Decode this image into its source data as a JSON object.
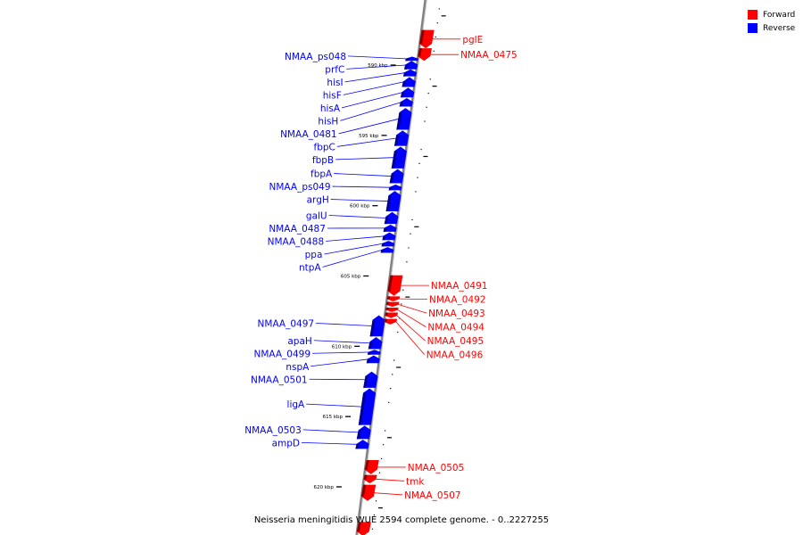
{
  "caption": "Neisseria meningitidis WUE 2594 complete genome. - 0..2227255",
  "legend": [
    {
      "label": "Forward",
      "color": "#ff0000"
    },
    {
      "label": "Reverse",
      "color": "#0000ff"
    }
  ],
  "colors": {
    "forward": "#ff0000",
    "reverse": "#0000ff",
    "backbone": "#808080"
  },
  "scale_marks": [
    {
      "label": "590 kbp",
      "kbp": 590
    },
    {
      "label": "595 kbp",
      "kbp": 595
    },
    {
      "label": "600 kbp",
      "kbp": 600
    },
    {
      "label": "605 kbp",
      "kbp": 605
    },
    {
      "label": "610 kbp",
      "kbp": 610
    },
    {
      "label": "615 kbp",
      "kbp": 615
    },
    {
      "label": "620 kbp",
      "kbp": 620
    }
  ],
  "genes": [
    {
      "name": "pglE",
      "strand": "forward",
      "start_kbp": 587.5,
      "end_kbp": 588.8
    },
    {
      "name": "NMAA_0475",
      "strand": "forward",
      "start_kbp": 588.8,
      "end_kbp": 589.7
    },
    {
      "name": "NMAA_ps048",
      "strand": "reverse",
      "start_kbp": 589.4,
      "end_kbp": 589.7
    },
    {
      "name": "prfC",
      "strand": "reverse",
      "start_kbp": 589.7,
      "end_kbp": 590.3
    },
    {
      "name": "hisI",
      "strand": "reverse",
      "start_kbp": 590.3,
      "end_kbp": 590.8
    },
    {
      "name": "hisF",
      "strand": "reverse",
      "start_kbp": 590.85,
      "end_kbp": 591.55
    },
    {
      "name": "hisA",
      "strand": "reverse",
      "start_kbp": 591.6,
      "end_kbp": 592.3
    },
    {
      "name": "hisH",
      "strand": "reverse",
      "start_kbp": 592.35,
      "end_kbp": 592.95
    },
    {
      "name": "NMAA_0481",
      "strand": "reverse",
      "start_kbp": 593.05,
      "end_kbp": 594.6
    },
    {
      "name": "fbpC",
      "strand": "reverse",
      "start_kbp": 594.65,
      "end_kbp": 595.75
    },
    {
      "name": "fbpB",
      "strand": "reverse",
      "start_kbp": 595.8,
      "end_kbp": 597.35
    },
    {
      "name": "fbpA",
      "strand": "reverse",
      "start_kbp": 597.4,
      "end_kbp": 598.4
    },
    {
      "name": "NMAA_ps049",
      "strand": "reverse",
      "start_kbp": 598.5,
      "end_kbp": 598.9
    },
    {
      "name": "argH",
      "strand": "reverse",
      "start_kbp": 598.95,
      "end_kbp": 600.4
    },
    {
      "name": "galU",
      "strand": "reverse",
      "start_kbp": 600.45,
      "end_kbp": 601.3
    },
    {
      "name": "NMAA_0487",
      "strand": "reverse",
      "start_kbp": 601.35,
      "end_kbp": 601.85
    },
    {
      "name": "NMAA_0488",
      "strand": "reverse",
      "start_kbp": 601.9,
      "end_kbp": 602.45
    },
    {
      "name": "ppa",
      "strand": "reverse",
      "start_kbp": 602.5,
      "end_kbp": 602.9
    },
    {
      "name": "ntpA",
      "strand": "reverse",
      "start_kbp": 602.95,
      "end_kbp": 603.35
    },
    {
      "name": "NMAA_0491",
      "strand": "forward",
      "start_kbp": 604.95,
      "end_kbp": 606.4
    },
    {
      "name": "NMAA_0492",
      "strand": "forward",
      "start_kbp": 606.45,
      "end_kbp": 606.8
    },
    {
      "name": "NMAA_0493",
      "strand": "forward",
      "start_kbp": 606.85,
      "end_kbp": 607.2
    },
    {
      "name": "NMAA_0494",
      "strand": "forward",
      "start_kbp": 607.25,
      "end_kbp": 607.55
    },
    {
      "name": "NMAA_0495",
      "strand": "forward",
      "start_kbp": 607.6,
      "end_kbp": 608.0
    },
    {
      "name": "NMAA_0496",
      "strand": "forward",
      "start_kbp": 608.05,
      "end_kbp": 608.45
    },
    {
      "name": "NMAA_0497",
      "strand": "reverse",
      "start_kbp": 607.8,
      "end_kbp": 609.3
    },
    {
      "name": "apaH",
      "strand": "reverse",
      "start_kbp": 609.35,
      "end_kbp": 610.2
    },
    {
      "name": "NMAA_0499",
      "strand": "reverse",
      "start_kbp": 610.25,
      "end_kbp": 610.6
    },
    {
      "name": "nspA",
      "strand": "reverse",
      "start_kbp": 610.65,
      "end_kbp": 611.2
    },
    {
      "name": "NMAA_0501",
      "strand": "reverse",
      "start_kbp": 611.8,
      "end_kbp": 612.95
    },
    {
      "name": "ligA",
      "strand": "reverse",
      "start_kbp": 613.0,
      "end_kbp": 615.6
    },
    {
      "name": "NMAA_0503",
      "strand": "reverse",
      "start_kbp": 615.65,
      "end_kbp": 616.6
    },
    {
      "name": "ampD",
      "strand": "reverse",
      "start_kbp": 616.65,
      "end_kbp": 617.3
    },
    {
      "name": "NMAA_0505",
      "strand": "forward",
      "start_kbp": 618.1,
      "end_kbp": 619.1
    },
    {
      "name": "tmk",
      "strand": "forward",
      "start_kbp": 619.15,
      "end_kbp": 619.75
    },
    {
      "name": "NMAA_0507",
      "strand": "forward",
      "start_kbp": 619.85,
      "end_kbp": 621.0
    },
    {
      "name": "",
      "strand": "forward",
      "start_kbp": 622.5,
      "end_kbp": 623.5
    }
  ]
}
